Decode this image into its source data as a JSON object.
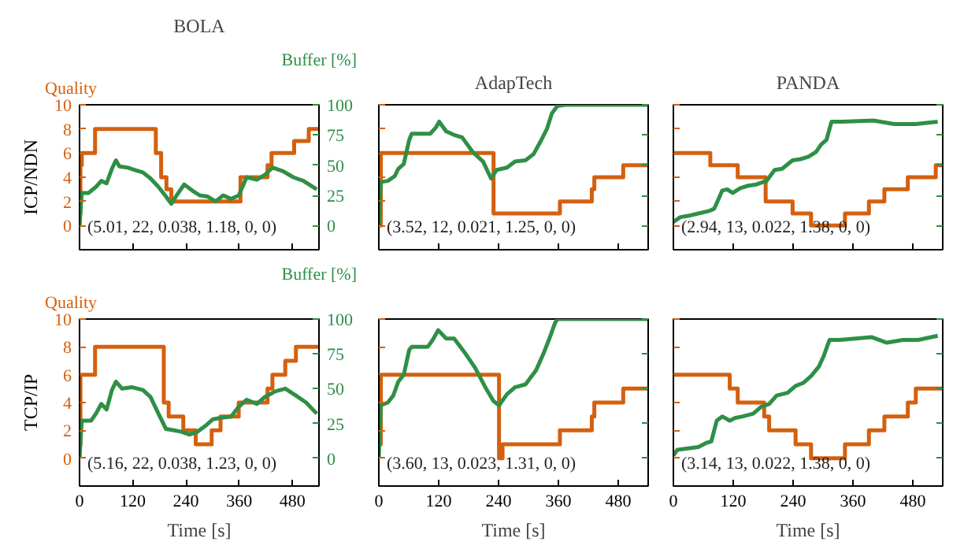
{
  "chart_data": [
    {
      "type": "step",
      "title": "BOLA",
      "ylabel": "ICP/NDN",
      "xlim": [
        0,
        540
      ],
      "xticks": [
        0,
        120,
        240,
        360,
        480
      ],
      "ylim": [
        -2,
        10
      ],
      "yticks": [
        0,
        2,
        4,
        6,
        8,
        10
      ],
      "y2lim": [
        -20,
        100
      ],
      "y2ticks": [
        0,
        25,
        50,
        75,
        100
      ],
      "tick_labels": "y",
      "annotations": [
        "(5.01, 22, 0.038, 1.18, 0, 0)"
      ],
      "series": [
        {
          "name": "Quality",
          "color": "#d4600f",
          "x": [
            0,
            2,
            5,
            35,
            172,
            184,
            196,
            207,
            363,
            424,
            433,
            484,
            517,
            540
          ],
          "values": [
            1,
            5,
            6,
            8,
            6,
            4,
            3,
            2,
            4,
            5,
            6,
            7,
            8,
            8
          ]
        },
        {
          "name": "Buffer [%]",
          "type": "line",
          "axis": "y2",
          "color": "#2f8f46",
          "x": [
            0,
            5,
            20,
            37,
            49,
            61,
            73,
            82,
            90,
            108,
            125,
            143,
            160,
            178,
            195,
            207,
            219,
            236,
            254,
            271,
            289,
            307,
            324,
            342,
            359,
            377,
            400,
            418,
            435,
            459,
            482,
            505,
            535
          ],
          "values": [
            0,
            27,
            27,
            32,
            37,
            35,
            47,
            54,
            49,
            48,
            46,
            44,
            39,
            32,
            24,
            18,
            25,
            34,
            29,
            25,
            24,
            20,
            25,
            22,
            25,
            40,
            38,
            42,
            48,
            45,
            40,
            37,
            30
          ]
        }
      ]
    },
    {
      "type": "step",
      "title": "AdapTech",
      "xlim": [
        0,
        540
      ],
      "xticks": [
        0,
        120,
        240,
        360,
        480
      ],
      "ylim": [
        -2,
        10
      ],
      "yticks": [
        0,
        2,
        4,
        6,
        8,
        10
      ],
      "y2lim": [
        -20,
        100
      ],
      "y2ticks": [
        0,
        25,
        50,
        75,
        100
      ],
      "tick_labels": false,
      "annotations": [
        "(3.52, 12, 0.021, 1.25, 0, 0)"
      ],
      "series": [
        {
          "color": "#d4600f",
          "x": [
            0,
            4,
            219,
            230,
            363,
            427,
            432,
            490,
            540
          ],
          "values": [
            0,
            6,
            6,
            1,
            2,
            3,
            4,
            5,
            5
          ]
        },
        {
          "type": "line",
          "axis": "y2",
          "color": "#2f8f46",
          "x": [
            0,
            4,
            18,
            32,
            39,
            50,
            61,
            66,
            82,
            103,
            114,
            121,
            135,
            151,
            167,
            188,
            209,
            225,
            236,
            257,
            273,
            294,
            310,
            326,
            337,
            347,
            358,
            374,
            540
          ],
          "values": [
            0,
            36,
            37,
            41,
            47,
            51,
            71,
            76,
            76,
            76,
            81,
            86,
            78,
            75,
            73,
            61,
            53,
            39,
            46,
            48,
            53,
            54,
            59,
            71,
            80,
            93,
            99,
            100,
            100
          ]
        }
      ]
    },
    {
      "type": "step",
      "title": "PANDA",
      "xlim": [
        0,
        540
      ],
      "xticks": [
        0,
        120,
        240,
        360,
        480
      ],
      "ylim": [
        -2,
        10
      ],
      "yticks": [
        0,
        2,
        4,
        6,
        8,
        10
      ],
      "y2lim": [
        -20,
        100
      ],
      "y2ticks": [
        0,
        25,
        50,
        75,
        100
      ],
      "tick_labels": false,
      "annotations": [
        "(2.94, 13, 0.022, 1.38, 0, 0)"
      ],
      "series": [
        {
          "color": "#d4600f",
          "x": [
            0,
            74,
            129,
            185,
            239,
            276,
            344,
            392,
            423,
            470,
            526,
            540
          ],
          "values": [
            6,
            5,
            4,
            2,
            1,
            0,
            1,
            2,
            3,
            4,
            5,
            5
          ]
        },
        {
          "type": "line",
          "axis": "y2",
          "color": "#2f8f46",
          "x": [
            0,
            14,
            29,
            50,
            71,
            82,
            98,
            108,
            119,
            134,
            150,
            166,
            187,
            203,
            218,
            239,
            255,
            271,
            286,
            296,
            307,
            317,
            338,
            401,
            443,
            485,
            530
          ],
          "values": [
            3,
            7,
            8,
            10,
            12,
            14,
            29,
            30,
            27,
            31,
            33,
            34,
            37,
            46,
            47,
            54,
            55,
            57,
            61,
            67,
            71,
            86,
            86,
            87,
            84,
            84,
            86
          ]
        }
      ]
    },
    {
      "type": "step",
      "ylabel": "TCP/IP",
      "xlabel": "Time [s]",
      "xlim": [
        0,
        540
      ],
      "xticks": [
        0,
        120,
        240,
        360,
        480
      ],
      "ylim": [
        -2,
        10
      ],
      "yticks": [
        0,
        2,
        4,
        6,
        8,
        10
      ],
      "y2lim": [
        -20,
        100
      ],
      "y2ticks": [
        0,
        25,
        50,
        75,
        100
      ],
      "annotations": [
        "(5.16, 22, 0.038, 1.23, 0, 0)"
      ],
      "series": [
        {
          "name": "Quality",
          "color": "#d4600f",
          "x": [
            0,
            2,
            35,
            190,
            201,
            213,
            234,
            262,
            298,
            318,
            359,
            424,
            435,
            464,
            488,
            540
          ],
          "values": [
            1,
            6,
            8,
            4,
            3,
            3,
            2,
            1,
            2,
            3,
            4,
            5,
            6,
            7,
            8,
            8
          ]
        },
        {
          "name": "Buffer [%]",
          "type": "line",
          "axis": "y2",
          "color": "#2f8f46",
          "x": [
            0,
            5,
            26,
            37,
            49,
            61,
            73,
            82,
            96,
            119,
            143,
            160,
            178,
            195,
            213,
            230,
            248,
            266,
            283,
            301,
            318,
            342,
            359,
            377,
            400,
            418,
            441,
            464,
            488,
            511,
            535
          ],
          "values": [
            0,
            27,
            27,
            32,
            39,
            35,
            49,
            55,
            50,
            51,
            49,
            44,
            32,
            21,
            20,
            19,
            17,
            19,
            23,
            28,
            29,
            30,
            37,
            42,
            39,
            44,
            48,
            50,
            45,
            40,
            32
          ]
        }
      ]
    },
    {
      "type": "step",
      "xlabel": "Time [s]",
      "xlim": [
        0,
        540
      ],
      "xticks": [
        0,
        120,
        240,
        360,
        480
      ],
      "ylim": [
        -2,
        10
      ],
      "yticks": [
        0,
        2,
        4,
        6,
        8,
        10
      ],
      "y2lim": [
        -20,
        100
      ],
      "y2ticks": [
        0,
        25,
        50,
        75,
        100
      ],
      "tick_labels": "x",
      "annotations": [
        "(3.60, 13, 0.023, 1.31, 0, 0)"
      ],
      "series": [
        {
          "color": "#d4600f",
          "x": [
            0,
            4,
            236,
            241,
            248,
            363,
            427,
            432,
            490,
            540
          ],
          "values": [
            1,
            6,
            6,
            0,
            1,
            2,
            3,
            4,
            5,
            5
          ]
        },
        {
          "type": "line",
          "axis": "y2",
          "color": "#2f8f46",
          "x": [
            0,
            4,
            18,
            29,
            39,
            50,
            61,
            66,
            98,
            108,
            119,
            135,
            151,
            172,
            193,
            215,
            230,
            241,
            257,
            273,
            294,
            315,
            331,
            342,
            353,
            358,
            540
          ],
          "values": [
            0,
            38,
            40,
            45,
            55,
            60,
            78,
            80,
            80,
            85,
            92,
            86,
            86,
            76,
            65,
            50,
            41,
            38,
            46,
            51,
            53,
            63,
            76,
            86,
            97,
            100,
            100
          ]
        }
      ]
    },
    {
      "type": "step",
      "xlabel": "Time [s]",
      "xlim": [
        0,
        540
      ],
      "xticks": [
        0,
        120,
        240,
        360,
        480
      ],
      "ylim": [
        -2,
        10
      ],
      "yticks": [
        0,
        2,
        4,
        6,
        8,
        10
      ],
      "y2lim": [
        -20,
        100
      ],
      "y2ticks": [
        0,
        25,
        50,
        75,
        100
      ],
      "tick_labels": "x",
      "annotations": [
        "(3.14, 13, 0.022, 1.38, 0, 0)"
      ],
      "series": [
        {
          "color": "#d4600f",
          "x": [
            0,
            113,
            129,
            182,
            192,
            245,
            276,
            344,
            392,
            423,
            470,
            486,
            540
          ],
          "values": [
            6,
            5,
            4,
            3,
            2,
            1,
            0,
            1,
            2,
            3,
            4,
            5,
            5
          ]
        },
        {
          "type": "line",
          "axis": "y2",
          "color": "#2f8f46",
          "x": [
            0,
            8,
            29,
            50,
            66,
            76,
            87,
            98,
            113,
            124,
            139,
            160,
            176,
            192,
            207,
            229,
            245,
            260,
            276,
            292,
            302,
            313,
            334,
            397,
            428,
            460,
            491,
            530
          ],
          "values": [
            2,
            6,
            7,
            8,
            11,
            12,
            27,
            30,
            27,
            29,
            30,
            32,
            37,
            39,
            45,
            47,
            52,
            54,
            59,
            66,
            74,
            85,
            85,
            87,
            83,
            85,
            85,
            88
          ]
        }
      ]
    }
  ]
}
